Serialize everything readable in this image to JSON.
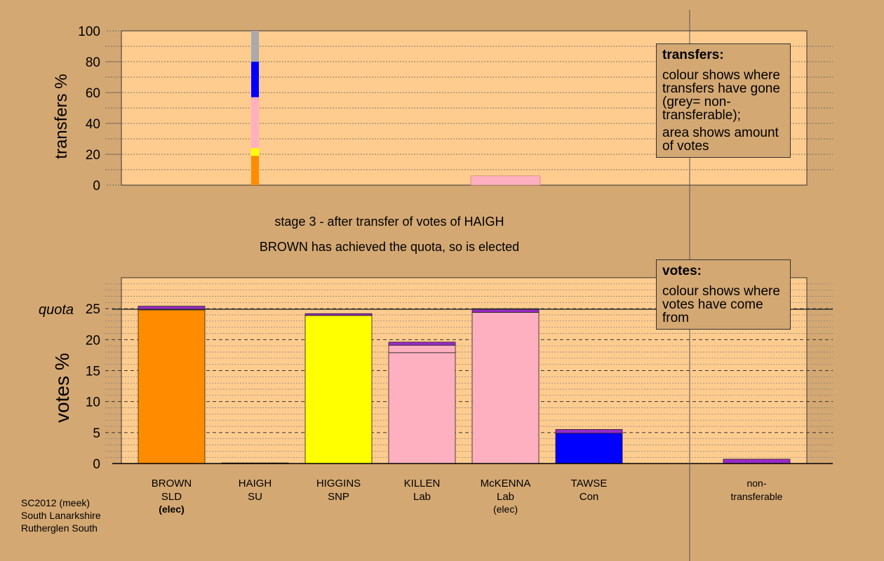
{
  "stage": {
    "line1": "stage 3 - after transfer of votes of HAIGH",
    "line2": "BROWN has achieved the quota, so is elected"
  },
  "legend_transfers": {
    "title": "transfers:",
    "text1": "colour shows where transfers have gone (grey= non-transferable);",
    "text2": "area shows amount of votes"
  },
  "legend_votes": {
    "title": "votes:",
    "text": "colour shows where votes have come from"
  },
  "footer": {
    "line1": "SC2012 (meek)",
    "line2": "South Lanarkshire",
    "line3": "Rutherglen South"
  },
  "colors": {
    "background": "#D4A873",
    "plot_bg": "#FFCC8F",
    "SLD": "#FF8C00",
    "SNP": "#FFFF00",
    "Lab": "#FFB0C0",
    "Con": "#0000FF",
    "SU": "#9A2AC8",
    "nontransferable": "#AAAAAA"
  },
  "chart_data": [
    {
      "type": "bar",
      "title": "",
      "ylabel": "transfers %",
      "ylim": [
        0,
        100
      ],
      "yticks": [
        "0",
        "20",
        "40",
        "60",
        "80",
        "100"
      ],
      "transfer_from": "HAIGH",
      "segments": [
        {
          "to": "BROWN",
          "color": "SLD",
          "value": 19
        },
        {
          "to": "HIGGINS",
          "color": "SNP",
          "value": 5
        },
        {
          "to": "KILLEN / McKENNA",
          "color": "Lab",
          "value": 33
        },
        {
          "to": "TAWSE",
          "color": "Con",
          "value": 23
        },
        {
          "to": "non-transferable",
          "color": "nontransferable",
          "value": 20
        }
      ],
      "area_bar": {
        "position": "McKENNA",
        "value": 6,
        "color": "Lab"
      }
    },
    {
      "type": "bar",
      "stacked": true,
      "ylabel": "votes %",
      "ylim": [
        0,
        30
      ],
      "yticks": [
        "0",
        "5",
        "10",
        "15",
        "20",
        "25"
      ],
      "quota": 24.9,
      "quota_label": "quota",
      "candidates": [
        {
          "name": "BROWN",
          "party": "SLD",
          "note": "(elec)",
          "segments": [
            {
              "color": "SLD",
              "value": 24.8
            },
            {
              "color": "SU",
              "value": 0.6
            }
          ]
        },
        {
          "name": "HAIGH",
          "party": "SU",
          "note": "",
          "segments": [
            {
              "color": "SU",
              "value": 0.1
            }
          ]
        },
        {
          "name": "HIGGINS",
          "party": "SNP",
          "note": "",
          "segments": [
            {
              "color": "SNP",
              "value": 23.9
            },
            {
              "color": "SU",
              "value": 0.3
            }
          ]
        },
        {
          "name": "KILLEN",
          "party": "Lab",
          "note": "",
          "segments": [
            {
              "color": "Lab",
              "value": 17.9
            },
            {
              "color": "Lab",
              "value": 1.2
            },
            {
              "color": "SU",
              "value": 0.5
            }
          ]
        },
        {
          "name": "McKENNA",
          "party": "Lab",
          "note": "(elec)",
          "segments": [
            {
              "color": "Lab",
              "value": 24.4
            },
            {
              "color": "SU",
              "value": 0.6
            }
          ]
        },
        {
          "name": "TAWSE",
          "party": "Con",
          "note": "",
          "segments": [
            {
              "color": "Con",
              "value": 4.9
            },
            {
              "color": "SU",
              "value": 0.6
            }
          ]
        },
        {
          "name": "non-",
          "party": "transferable",
          "note": "",
          "segments": [
            {
              "color": "SU",
              "value": 0.7
            }
          ]
        }
      ]
    }
  ]
}
